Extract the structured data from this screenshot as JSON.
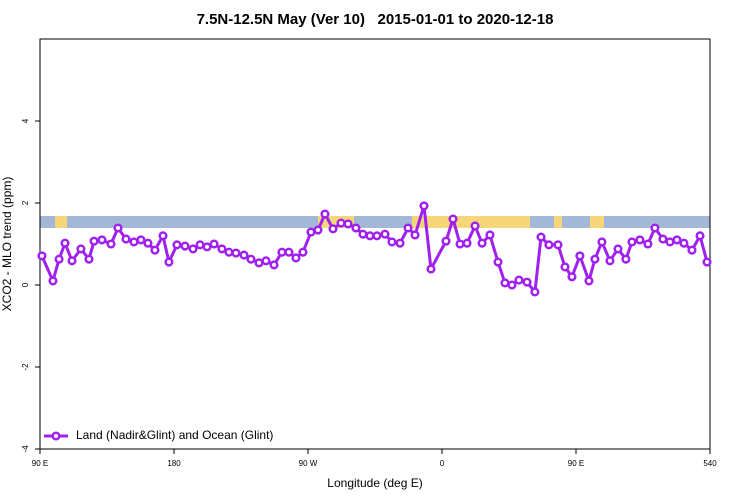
{
  "chart_data": {
    "type": "line",
    "title": "7.5N-12.5N May (Ver 10)   2015-01-01 to 2020-12-18",
    "x_label": "Longitude (deg E)",
    "y_label": "XCO2 - MLO trend (ppm)",
    "xlim": [
      90,
      540
    ],
    "xticks": [
      {
        "value": 90,
        "label": "90 E"
      },
      180,
      {
        "value": 270,
        "label": "90 W"
      },
      {
        "value": 360,
        "label": "0"
      },
      {
        "value": 450,
        "label": "90 E"
      },
      540
    ],
    "ylim": [
      -4,
      6
    ],
    "yticks": [
      -4,
      -2,
      0,
      2,
      4
    ],
    "grid": false,
    "legend": "bottom-left",
    "x": [
      91.3,
      98.7,
      102.8,
      106.8,
      111.5,
      117.5,
      122.9,
      126.3,
      131.6,
      137.7,
      142.4,
      147.8,
      153.1,
      157.8,
      162.5,
      167.2,
      172.6,
      176.6,
      182.0,
      187.4,
      192.8,
      197.5,
      202.2,
      206.9,
      212.2,
      216.9,
      221.6,
      227.0,
      231.7,
      237.1,
      241.8,
      247.2,
      252.5,
      257.2,
      261.9,
      266.6,
      272.0,
      276.7,
      281.4,
      286.8,
      292.2,
      296.9,
      302.2,
      306.9,
      311.6,
      316.3,
      321.7,
      326.4,
      331.8,
      337.2,
      341.9,
      347.9,
      352.6,
      362.7,
      367.4,
      372.1,
      376.8,
      382.2,
      386.9,
      392.2,
      397.6,
      402.3,
      407.0,
      411.7,
      417.1,
      422.4,
      426.5,
      431.8,
      437.9,
      442.6,
      447.3,
      452.6,
      458.7,
      462.7,
      467.4,
      472.8,
      478.2,
      483.5,
      487.6,
      492.9,
      498.3,
      503.0,
      508.4,
      513.1,
      517.8,
      522.5,
      527.9,
      533.3,
      538.0
    ],
    "series": [
      {
        "name": "Land (Nadir&Glint) and Ocean (Glint)",
        "color": "#a020f0",
        "values": [
          0.71,
          0.1,
          0.63,
          1.02,
          0.59,
          0.88,
          0.63,
          1.07,
          1.1,
          1.0,
          1.39,
          1.12,
          1.05,
          1.1,
          1.02,
          0.85,
          1.2,
          0.56,
          0.98,
          0.95,
          0.88,
          0.98,
          0.93,
          1.0,
          0.88,
          0.8,
          0.78,
          0.73,
          0.63,
          0.54,
          0.59,
          0.49,
          0.8,
          0.8,
          0.66,
          0.8,
          1.29,
          1.34,
          1.73,
          1.37,
          1.51,
          1.49,
          1.39,
          1.24,
          1.2,
          1.2,
          1.24,
          1.05,
          1.02,
          1.39,
          1.22,
          1.93,
          0.39,
          1.07,
          1.61,
          1.0,
          1.02,
          1.44,
          1.02,
          1.22,
          0.56,
          0.05,
          0.0,
          0.12,
          0.07,
          -0.17,
          1.17,
          0.98,
          0.98,
          0.44,
          0.2,
          0.71,
          0.1,
          0.63,
          1.05,
          0.59,
          0.88,
          0.63,
          1.05,
          1.1,
          1.0,
          1.39,
          1.12,
          1.05,
          1.1,
          1.02,
          0.85,
          1.2,
          0.56
        ]
      }
    ]
  }
}
